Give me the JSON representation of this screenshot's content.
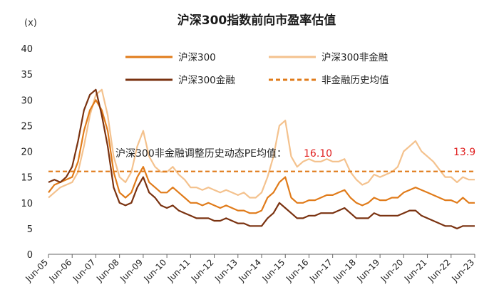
{
  "chart_data": {
    "type": "line",
    "title": "沪深300指数前向市盈率估值",
    "unit": "(x)",
    "ylim": [
      0,
      40
    ],
    "yticks": [
      "0",
      "5",
      "10",
      "15",
      "20",
      "25",
      "30",
      "35",
      "40"
    ],
    "xticks": [
      "Jun-05",
      "Jun-06",
      "Jun-07",
      "Jun-08",
      "Jun-09",
      "Jun-10",
      "Jun-11",
      "Jun-12",
      "Jun-13",
      "Jun-14",
      "Jun-15",
      "Jun-16",
      "Jun-17",
      "Jun-18",
      "Jun-19",
      "Jun-20",
      "Jun-21",
      "Jun-22",
      "Jun-23"
    ],
    "x": [
      2005.5,
      2005.75,
      2006.0,
      2006.25,
      2006.5,
      2006.75,
      2007.0,
      2007.25,
      2007.5,
      2007.75,
      2008.0,
      2008.25,
      2008.5,
      2008.75,
      2009.0,
      2009.25,
      2009.5,
      2009.75,
      2010.0,
      2010.25,
      2010.5,
      2010.75,
      2011.0,
      2011.25,
      2011.5,
      2011.75,
      2012.0,
      2012.25,
      2012.5,
      2012.75,
      2013.0,
      2013.25,
      2013.5,
      2013.75,
      2014.0,
      2014.25,
      2014.5,
      2014.75,
      2015.0,
      2015.25,
      2015.5,
      2015.75,
      2016.0,
      2016.25,
      2016.5,
      2016.75,
      2017.0,
      2017.25,
      2017.5,
      2017.75,
      2018.0,
      2018.25,
      2018.5,
      2018.75,
      2019.0,
      2019.25,
      2019.5,
      2019.75,
      2020.0,
      2020.25,
      2020.5,
      2020.75,
      2021.0,
      2021.25,
      2021.5,
      2021.75,
      2022.0,
      2022.25,
      2022.5,
      2022.75,
      2023.0,
      2023.25,
      2023.5
    ],
    "series": [
      {
        "name": "沪深300",
        "color": "#e07b1a",
        "width": 2.2,
        "dash": "",
        "values": [
          12,
          13.5,
          14,
          14.5,
          15,
          18,
          24,
          28,
          30,
          28,
          24,
          16,
          12,
          11,
          12,
          15,
          17,
          14,
          13,
          12,
          12,
          13,
          12,
          11,
          10,
          10,
          9.5,
          10,
          9.5,
          9,
          9.5,
          9,
          8.5,
          8.5,
          8,
          8,
          8.5,
          11,
          12,
          14,
          15,
          11,
          10,
          10,
          10.5,
          10.5,
          11,
          11.5,
          11.5,
          12,
          12.5,
          11,
          10,
          9.5,
          10,
          11,
          10.5,
          10.5,
          11,
          11,
          12,
          12.5,
          13,
          12.5,
          12,
          11.5,
          11,
          10.5,
          10.5,
          10,
          11,
          10,
          10
        ]
      },
      {
        "name": "沪深300非金融",
        "color": "#f4c28e",
        "width": 2.2,
        "dash": "",
        "values": [
          11,
          12,
          13,
          13.5,
          14,
          16,
          21,
          27,
          31,
          32,
          27,
          19,
          15,
          14,
          16,
          21,
          24,
          19,
          17,
          16,
          16,
          17,
          15.5,
          14.5,
          13,
          13,
          12.5,
          13,
          12.5,
          12,
          12.5,
          12,
          11.5,
          12,
          11,
          11,
          12,
          15,
          19,
          25,
          26,
          19,
          17,
          18,
          18.5,
          18,
          18,
          18.5,
          18,
          18,
          18.5,
          16,
          14.5,
          13.5,
          14,
          15.5,
          15,
          15.5,
          16,
          17,
          20,
          21,
          22,
          20,
          19,
          18,
          16.5,
          15,
          15,
          14,
          15,
          14.5,
          14.5
        ]
      },
      {
        "name": "沪深300金融",
        "color": "#7a3210",
        "width": 2.2,
        "dash": "",
        "values": [
          14,
          14.5,
          14,
          15,
          17,
          22,
          28,
          31,
          32,
          27,
          21,
          13,
          10,
          9.5,
          10,
          13,
          15,
          12,
          11,
          9.5,
          9,
          9.5,
          8.5,
          8,
          7.5,
          7,
          7,
          7,
          6.5,
          6.5,
          7,
          6.5,
          6,
          6,
          5.5,
          5.5,
          5.5,
          7,
          8,
          10,
          9,
          8,
          7,
          7,
          7.5,
          7.5,
          8,
          8,
          8,
          8.5,
          9,
          8,
          7,
          7,
          7,
          8,
          7.5,
          7.5,
          7.5,
          7.5,
          8,
          8.5,
          8.5,
          7.5,
          7,
          6.5,
          6,
          5.5,
          5.5,
          5,
          5.5,
          5.5,
          5.5
        ]
      },
      {
        "name": "非金融历史均值",
        "color": "#e07b1a",
        "width": 2.2,
        "dash": "6,4",
        "values": [
          16.1,
          16.1,
          16.1,
          16.1,
          16.1,
          16.1,
          16.1,
          16.1,
          16.1,
          16.1,
          16.1,
          16.1,
          16.1,
          16.1,
          16.1,
          16.1,
          16.1,
          16.1,
          16.1,
          16.1,
          16.1,
          16.1,
          16.1,
          16.1,
          16.1,
          16.1,
          16.1,
          16.1,
          16.1,
          16.1,
          16.1,
          16.1,
          16.1,
          16.1,
          16.1,
          16.1,
          16.1,
          16.1,
          16.1,
          16.1,
          16.1,
          16.1,
          16.1,
          16.1,
          16.1,
          16.1,
          16.1,
          16.1,
          16.1,
          16.1,
          16.1,
          16.1,
          16.1,
          16.1,
          16.1,
          16.1,
          16.1,
          16.1,
          16.1,
          16.1,
          16.1,
          16.1,
          16.1,
          16.1,
          16.1,
          16.1,
          16.1,
          16.1,
          16.1,
          16.1,
          16.1,
          16.1,
          16.1
        ]
      }
    ],
    "legend": [
      {
        "label": "沪深300",
        "color": "#e07b1a",
        "dash": ""
      },
      {
        "label": "沪深300非金融",
        "color": "#f4c28e",
        "dash": ""
      },
      {
        "label": "沪深300金融",
        "color": "#7a3210",
        "dash": ""
      },
      {
        "label": "非金融历史均值",
        "color": "#e07b1a",
        "dash": "6,4"
      }
    ],
    "legend_position": "top",
    "grid": false,
    "annotations": {
      "avg_label": "沪深300非金融调整历史动态PE均值：",
      "avg_value": "16.10",
      "latest_value": "13.9"
    }
  }
}
